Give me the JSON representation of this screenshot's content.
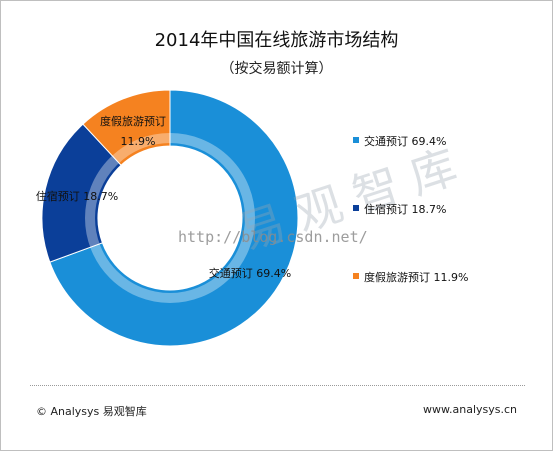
{
  "chart_data": {
    "type": "pie",
    "title": "2014年中国在线旅游市场结构",
    "subtitle": "（按交易额计算）",
    "slices": [
      {
        "label": "交通预订",
        "value": 69.4,
        "display": "69.4%",
        "color": "#1a8fd8"
      },
      {
        "label": "住宿预订",
        "value": 18.7,
        "display": "18.7%",
        "color": "#0b3f99"
      },
      {
        "label": "度假旅游预订",
        "value": 11.9,
        "display": "11.9%",
        "color": "#f58220"
      }
    ],
    "legend_position": "right"
  },
  "watermark": {
    "brand": "易观智库",
    "url": "http://blog.csdn.net/"
  },
  "footer": {
    "left": "© Analysys 易观智库",
    "right": "www.analysys.cn"
  }
}
